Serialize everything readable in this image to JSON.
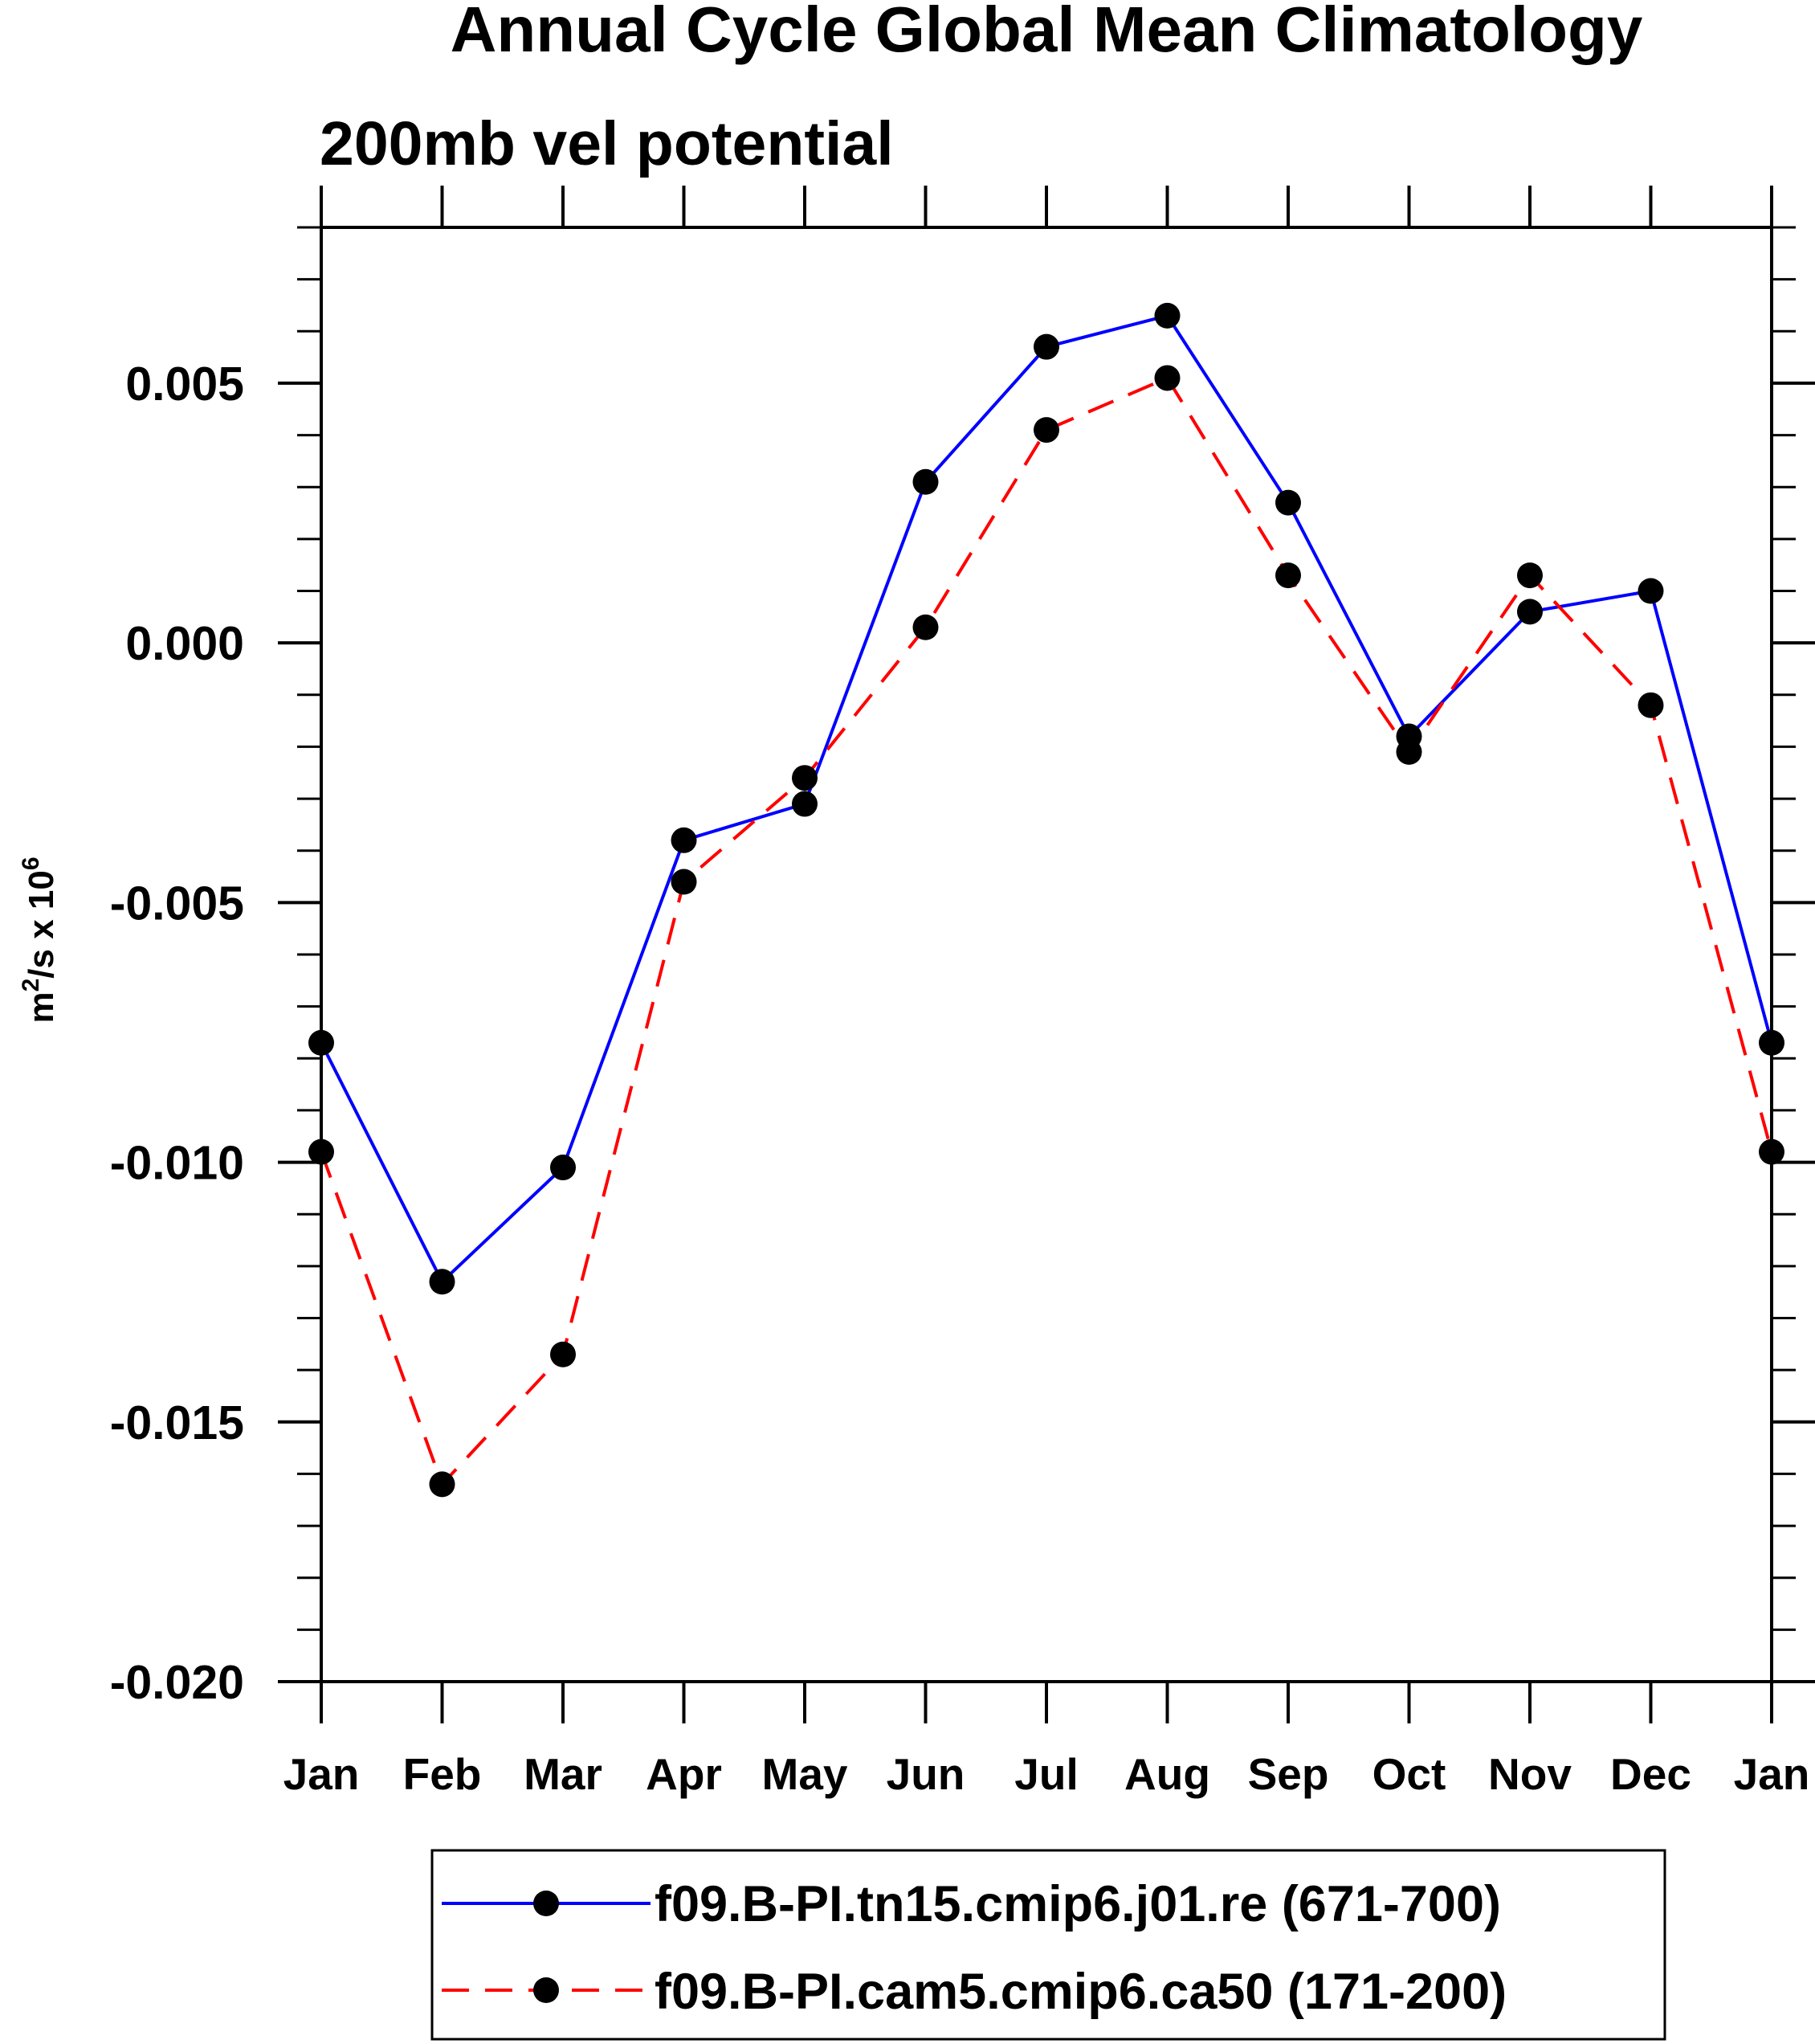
{
  "chart_data": {
    "type": "line",
    "title": "Annual Cycle Global Mean Climatology",
    "subtitle": "200mb vel potential",
    "ylabel": "m²/s x 10⁶",
    "ylabel_parts": {
      "m": "m",
      "sup1": "2",
      "mid": "/s x 10",
      "sup2": "6"
    },
    "categories": [
      "Jan",
      "Feb",
      "Mar",
      "Apr",
      "May",
      "Jun",
      "Jul",
      "Aug",
      "Sep",
      "Oct",
      "Nov",
      "Dec",
      "Jan"
    ],
    "ylim": [
      -0.02,
      0.008
    ],
    "yticks": [
      -0.02,
      -0.015,
      -0.01,
      -0.005,
      0.0,
      0.005
    ],
    "ytick_labels": [
      "-0.020",
      "-0.015",
      "-0.010",
      "-0.005",
      "0.000",
      "0.005"
    ],
    "series": [
      {
        "name": "f09.B-PI.tn15.cmip6.j01.re (671-700)",
        "color": "#0000ff",
        "dash": "solid",
        "values": [
          -0.0077,
          -0.0123,
          -0.0101,
          -0.0038,
          -0.0031,
          0.0031,
          0.0057,
          0.0063,
          0.0027,
          -0.0018,
          0.0006,
          0.001,
          -0.0077
        ]
      },
      {
        "name": "f09.B-PI.cam5.cmip6.ca50 (171-200)",
        "color": "#ff0000",
        "dash": "dashed",
        "values": [
          -0.0098,
          -0.0162,
          -0.0137,
          -0.0046,
          -0.0026,
          0.0003,
          0.0041,
          0.0051,
          0.0013,
          -0.0021,
          0.0013,
          -0.0012,
          -0.0098
        ]
      }
    ],
    "legend_position": "bottom"
  }
}
